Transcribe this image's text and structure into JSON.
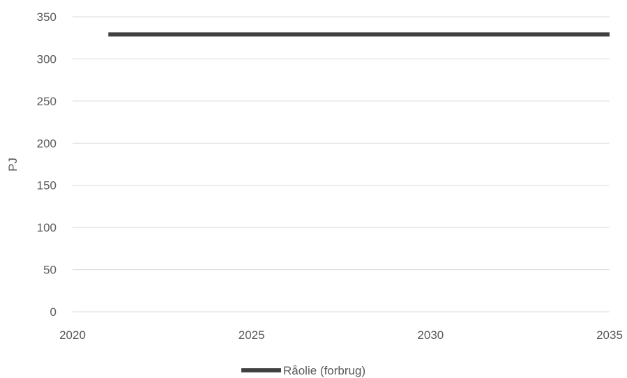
{
  "chart_data": {
    "type": "line",
    "ylabel": "PJ",
    "xlabel": "",
    "xlim": [
      2020,
      2035
    ],
    "ylim": [
      0,
      350
    ],
    "x_ticks": [
      2020,
      2025,
      2030,
      2035
    ],
    "y_ticks": [
      0,
      50,
      100,
      150,
      200,
      250,
      300,
      350
    ],
    "grid": "horizontal",
    "legend_position": "bottom",
    "series": [
      {
        "name": "Råolie (forbrug)",
        "color": "#404040",
        "x": [
          2021,
          2022,
          2023,
          2024,
          2025,
          2026,
          2027,
          2028,
          2029,
          2030,
          2031,
          2032,
          2033,
          2034,
          2035
        ],
        "values": [
          329,
          329,
          329,
          329,
          329,
          329,
          329,
          329,
          329,
          329,
          329,
          329,
          329,
          329,
          329
        ]
      }
    ]
  }
}
